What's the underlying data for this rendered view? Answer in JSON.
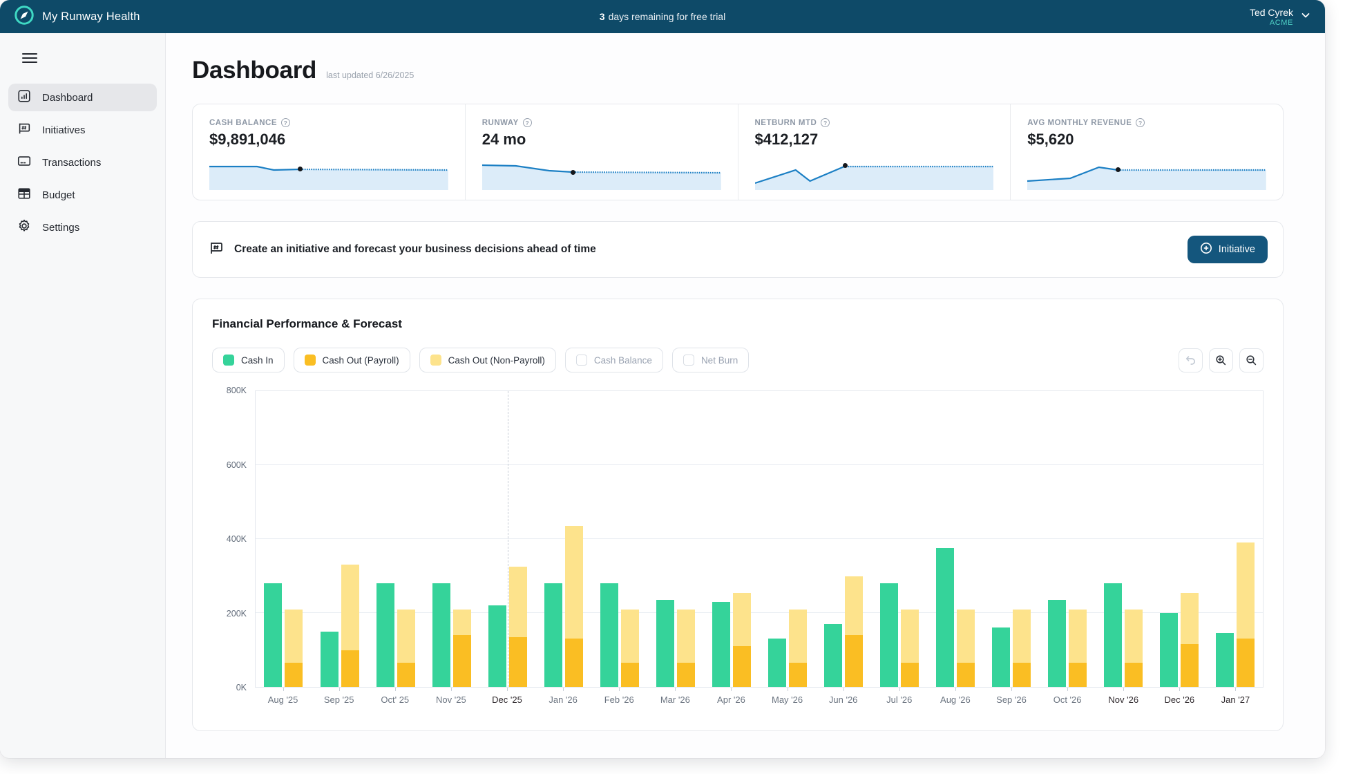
{
  "header": {
    "app_name": "My Runway Health",
    "trial_days": "3",
    "trial_text": "days remaining for free trial",
    "user_name": "Ted Cyrek",
    "user_org": "ACME"
  },
  "sidebar": {
    "items": [
      {
        "label": "Dashboard",
        "icon": "dashboard-icon",
        "active": true
      },
      {
        "label": "Initiatives",
        "icon": "initiatives-icon",
        "active": false
      },
      {
        "label": "Transactions",
        "icon": "transactions-icon",
        "active": false
      },
      {
        "label": "Budget",
        "icon": "budget-icon",
        "active": false
      },
      {
        "label": "Settings",
        "icon": "settings-icon",
        "active": false
      }
    ]
  },
  "page": {
    "title": "Dashboard",
    "last_updated": "last updated 6/26/2025"
  },
  "kpis": [
    {
      "label": "CASH BALANCE",
      "value": "$9,891,046",
      "spark": {
        "solid": [
          [
            0,
            12
          ],
          [
            20,
            12
          ],
          [
            27,
            17
          ],
          [
            38,
            16
          ]
        ],
        "dot": [
          38,
          15
        ],
        "dashed": [
          [
            38,
            16
          ],
          [
            100,
            17
          ]
        ]
      }
    },
    {
      "label": "RUNWAY",
      "value": "24 mo",
      "spark": {
        "solid": [
          [
            0,
            10
          ],
          [
            14,
            11
          ],
          [
            28,
            18
          ],
          [
            38,
            20
          ]
        ],
        "dot": [
          38,
          20
        ],
        "dashed": [
          [
            38,
            20
          ],
          [
            100,
            21
          ]
        ]
      }
    },
    {
      "label": "NETBURN MTD",
      "value": "$412,127",
      "spark": {
        "solid": [
          [
            0,
            36
          ],
          [
            17,
            17
          ],
          [
            23,
            33
          ],
          [
            38,
            11
          ]
        ],
        "dot": [
          38,
          10
        ],
        "dashed": [
          [
            38,
            12
          ],
          [
            100,
            12
          ]
        ]
      }
    },
    {
      "label": "AVG MONTHLY REVENUE",
      "value": "$5,620",
      "spark": {
        "solid": [
          [
            0,
            33
          ],
          [
            18,
            29
          ],
          [
            30,
            13
          ],
          [
            38,
            17
          ]
        ],
        "dot": [
          38,
          17
        ],
        "dashed": [
          [
            38,
            17
          ],
          [
            100,
            17
          ]
        ]
      }
    }
  ],
  "banner": {
    "text": "Create an initiative and forecast your business decisions ahead of time",
    "button_label": "Initiative"
  },
  "chart": {
    "title": "Financial Performance & Forecast",
    "legend": [
      {
        "label": "Cash In",
        "color": "#35d39a",
        "active": true
      },
      {
        "label": "Cash Out (Payroll)",
        "color": "#fabe23",
        "active": true
      },
      {
        "label": "Cash Out (Non-Payroll)",
        "color": "#fde38c",
        "active": true
      },
      {
        "label": "Cash Balance",
        "color": "",
        "active": false
      },
      {
        "label": "Net Burn",
        "color": "",
        "active": false
      }
    ],
    "toolbar": [
      {
        "name": "undo",
        "enabled": false
      },
      {
        "name": "zoom-in",
        "enabled": true
      },
      {
        "name": "zoom-out",
        "enabled": true
      }
    ]
  },
  "chart_data": {
    "type": "bar",
    "title": "Financial Performance & Forecast",
    "categories": [
      "Aug '25",
      "Sep '25",
      "Oct' 25",
      "Nov '25",
      "Dec '25",
      "Jan '26",
      "Feb '26",
      "Mar '26",
      "Apr '26",
      "May '26",
      "Jun '26",
      "Jul '26",
      "Aug '26",
      "Sep '26",
      "Oct '26",
      "Nov '26",
      "Dec '26",
      "Jan '27"
    ],
    "series": [
      {
        "name": "Cash In",
        "color": "#35d39a",
        "values": [
          280,
          150,
          280,
          280,
          220,
          280,
          280,
          235,
          230,
          130,
          170,
          280,
          375,
          160,
          235,
          280,
          200,
          145
        ]
      },
      {
        "name": "Cash Out (Payroll)",
        "color": "#fabe23",
        "values": [
          65,
          100,
          65,
          140,
          135,
          130,
          65,
          65,
          110,
          65,
          140,
          65,
          65,
          65,
          65,
          65,
          115,
          130
        ]
      },
      {
        "name": "Cash Out (Non-Payroll)",
        "color": "#fde38c",
        "values": [
          145,
          230,
          145,
          70,
          190,
          305,
          145,
          145,
          145,
          145,
          160,
          145,
          145,
          145,
          145,
          145,
          140,
          260
        ]
      }
    ],
    "stacking": "payroll-and-non-payroll-stacked; cash-in-separate-bar",
    "unit": "K (thousands of dollars)",
    "ylim": [
      0,
      800
    ],
    "y_ticks": [
      0,
      200,
      400,
      600,
      800
    ],
    "y_tick_labels": [
      "0K",
      "200K",
      "400K",
      "600K",
      "800K"
    ],
    "grid": true,
    "legend_position": "top",
    "today_index": 4,
    "emphasized_categories": [
      "Dec '25",
      "Nov '26",
      "Dec '26",
      "Jan '27"
    ]
  },
  "colors": {
    "header_bg": "#0e4a68",
    "accent_teal": "#4fd1c5",
    "button_bg": "#14567d",
    "spark_line": "#1b7fc4",
    "spark_fill": "#dcecf9",
    "green": "#35d39a",
    "orange": "#fabe23",
    "yellow": "#fde38c"
  }
}
